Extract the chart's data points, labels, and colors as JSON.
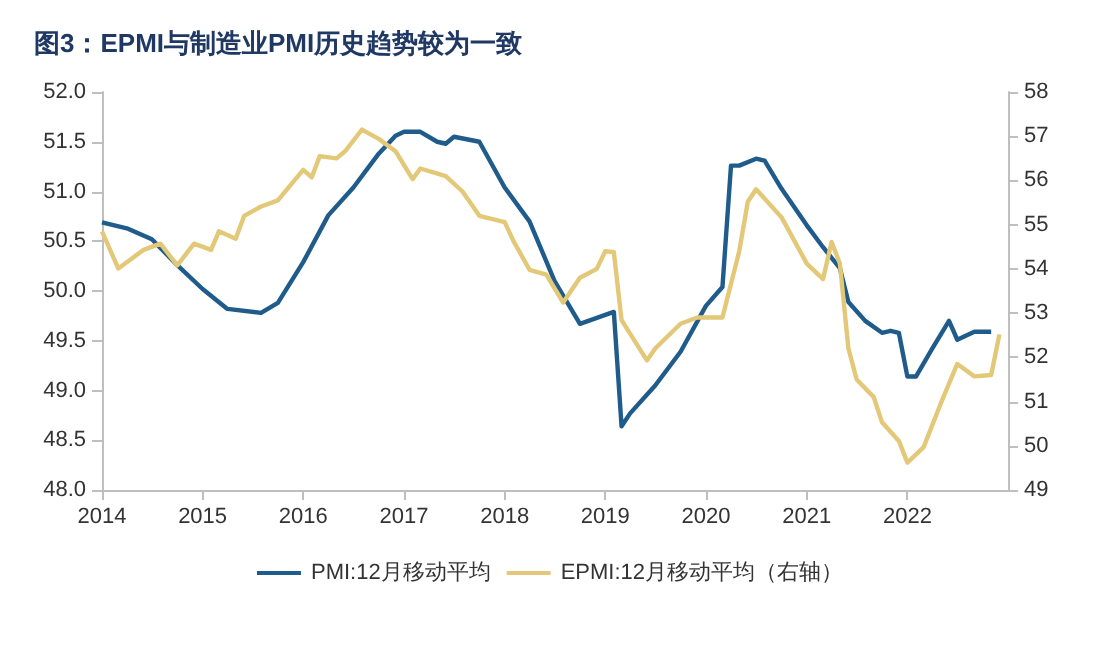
{
  "chart_data": {
    "type": "line",
    "title": "图3：EPMI与制造业PMI历史趋势较为一致",
    "xlim": [
      "2014-01",
      "2023-01"
    ],
    "xticks": [
      "2014",
      "2015",
      "2016",
      "2017",
      "2018",
      "2019",
      "2020",
      "2021",
      "2022"
    ],
    "ylim": [
      48,
      52
    ],
    "yticks": [
      {
        "value": 48,
        "label": "48.0"
      },
      {
        "value": 48.5,
        "label": "48.5"
      },
      {
        "value": 49,
        "label": "49.0"
      },
      {
        "value": 49.5,
        "label": "49.5"
      },
      {
        "value": 50,
        "label": "50.0"
      },
      {
        "value": 50.5,
        "label": "50.5"
      },
      {
        "value": 51,
        "label": "51.0"
      },
      {
        "value": 51.5,
        "label": "51.5"
      },
      {
        "value": 52,
        "label": "52.0"
      }
    ],
    "y2lim": [
      49,
      58
    ],
    "y2ticks": [
      49,
      50,
      51,
      52,
      53,
      54,
      55,
      56,
      57,
      58
    ],
    "grid": false,
    "legend": "bottom",
    "marker": "none",
    "line_style": "solid",
    "series": [
      {
        "name": "PMI:12月移动平均",
        "color": "#1f5c8b",
        "x": [
          "2014-01",
          "2014-04",
          "2014-07",
          "2014-10",
          "2015-01",
          "2015-04",
          "2015-08",
          "2015-10",
          "2016-01",
          "2016-04",
          "2016-07",
          "2016-10",
          "2016-12",
          "2017-01",
          "2017-03",
          "2017-05",
          "2017-06",
          "2017-07",
          "2017-10",
          "2018-01",
          "2018-04",
          "2018-07",
          "2018-10",
          "2019-01",
          "2019-02",
          "2019-03",
          "2019-04",
          "2019-07",
          "2019-10",
          "2020-01",
          "2020-03",
          "2020-04",
          "2020-05",
          "2020-07",
          "2020-08",
          "2020-10",
          "2021-01",
          "2021-03",
          "2021-05",
          "2021-06",
          "2021-08",
          "2021-10",
          "2021-11",
          "2021-12",
          "2022-01",
          "2022-02",
          "2022-04",
          "2022-06",
          "2022-07",
          "2022-09",
          "2022-11"
        ],
        "values": [
          50.69,
          50.63,
          50.52,
          50.26,
          50.02,
          49.82,
          49.78,
          49.88,
          50.29,
          50.76,
          51.04,
          51.38,
          51.56,
          51.6,
          51.6,
          51.5,
          51.48,
          51.55,
          51.5,
          51.04,
          50.7,
          50.1,
          49.67,
          49.76,
          49.79,
          48.64,
          48.77,
          49.05,
          49.39,
          49.85,
          50.04,
          51.26,
          51.26,
          51.33,
          51.31,
          51.03,
          50.66,
          50.44,
          50.23,
          49.89,
          49.7,
          49.58,
          49.6,
          49.58,
          49.14,
          49.14,
          49.42,
          49.7,
          49.51,
          49.59,
          49.59
        ]
      },
      {
        "name": "EPMI:12月移动平均（右轴）",
        "color": "#e3c878",
        "axis": "y2",
        "x": [
          "2014-01",
          "2014-03",
          "2014-06",
          "2014-08",
          "2014-10",
          "2014-12",
          "2015-02",
          "2015-03",
          "2015-05",
          "2015-06",
          "2015-08",
          "2015-10",
          "2016-01",
          "2016-02",
          "2016-03",
          "2016-05",
          "2016-06",
          "2016-08",
          "2016-10",
          "2016-12",
          "2017-02",
          "2017-03",
          "2017-06",
          "2017-08",
          "2017-10",
          "2018-01",
          "2018-02",
          "2018-04",
          "2018-06",
          "2018-08",
          "2018-10",
          "2018-12",
          "2019-01",
          "2019-02",
          "2019-03",
          "2019-06",
          "2019-07",
          "2019-10",
          "2019-12",
          "2020-03",
          "2020-05",
          "2020-06",
          "2020-07",
          "2020-10",
          "2021-01",
          "2021-03",
          "2021-04",
          "2021-05",
          "2021-06",
          "2021-07",
          "2021-09",
          "2021-10",
          "2021-12",
          "2022-01",
          "2022-03",
          "2022-05",
          "2022-07",
          "2022-09",
          "2022-11",
          "2022-12"
        ],
        "values": [
          54.85,
          54.01,
          54.43,
          54.57,
          54.08,
          54.57,
          54.43,
          54.85,
          54.68,
          55.2,
          55.41,
          55.55,
          56.24,
          56.07,
          56.55,
          56.5,
          56.66,
          57.15,
          56.94,
          56.66,
          56.03,
          56.27,
          56.1,
          55.75,
          55.2,
          55.06,
          54.64,
          53.98,
          53.87,
          53.24,
          53.8,
          54.0,
          54.4,
          54.38,
          52.84,
          51.93,
          52.2,
          52.76,
          52.9,
          52.9,
          54.4,
          55.52,
          55.8,
          55.17,
          54.12,
          53.77,
          54.61,
          54.12,
          52.2,
          51.5,
          51.1,
          50.53,
          50.11,
          49.62,
          49.97,
          50.94,
          51.85,
          51.57,
          51.6,
          52.52
        ]
      }
    ]
  }
}
